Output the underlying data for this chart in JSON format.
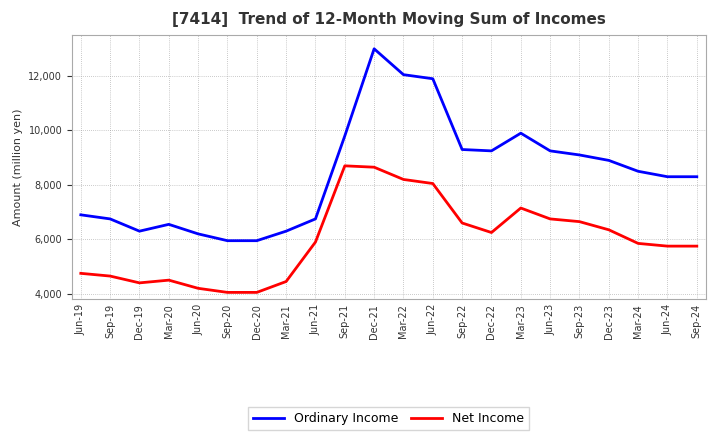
{
  "title": "[7414]  Trend of 12-Month Moving Sum of Incomes",
  "ylabel": "Amount (million yen)",
  "ylim": [
    3800,
    13500
  ],
  "yticks": [
    4000,
    6000,
    8000,
    10000,
    12000
  ],
  "background_color": "#ffffff",
  "plot_bg_color": "#ffffff",
  "grid_color": "#999999",
  "ordinary_income_color": "#0000ff",
  "net_income_color": "#ff0000",
  "line_width": 2.0,
  "labels": [
    "Jun-19",
    "Sep-19",
    "Dec-19",
    "Mar-20",
    "Jun-20",
    "Sep-20",
    "Dec-20",
    "Mar-21",
    "Jun-21",
    "Sep-21",
    "Dec-21",
    "Mar-22",
    "Jun-22",
    "Sep-22",
    "Dec-22",
    "Mar-23",
    "Jun-23",
    "Sep-23",
    "Dec-23",
    "Mar-24",
    "Jun-24",
    "Sep-24"
  ],
  "ordinary_income": [
    6900,
    6750,
    6300,
    6550,
    6200,
    5950,
    5950,
    6300,
    6750,
    9800,
    13000,
    12050,
    11900,
    9300,
    9250,
    9900,
    9250,
    9100,
    8900,
    8500,
    8300,
    8300
  ],
  "net_income": [
    4750,
    4650,
    4400,
    4500,
    4200,
    4050,
    4050,
    4450,
    5900,
    8700,
    8650,
    8200,
    8050,
    6600,
    6250,
    7150,
    6750,
    6650,
    6350,
    5850,
    5750,
    5750
  ],
  "title_fontsize": 11,
  "tick_fontsize": 7,
  "ylabel_fontsize": 8,
  "legend_fontsize": 9
}
